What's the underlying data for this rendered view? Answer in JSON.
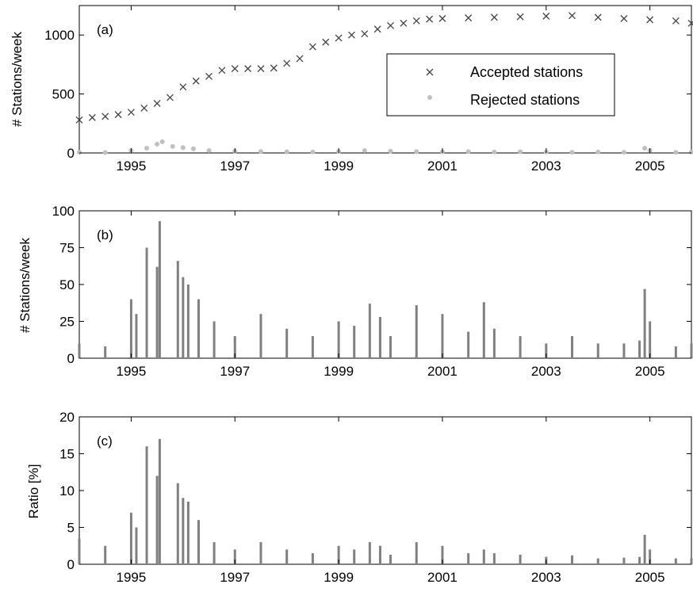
{
  "chart_data": [
    {
      "panel": "(a)",
      "type": "scatter",
      "ylabel": "# Stations/week",
      "xlim": [
        1994.0,
        2005.8
      ],
      "ylim": [
        0,
        1250
      ],
      "xticks": [
        1995,
        1997,
        1999,
        2001,
        2003,
        2005
      ],
      "yticks": [
        0,
        500,
        1000
      ],
      "legend": {
        "placement": "upper-right-inset"
      },
      "series": [
        {
          "name": "Accepted stations",
          "marker": "x",
          "color": "#444444",
          "x": [
            1994.0,
            1994.25,
            1994.5,
            1994.75,
            1995.0,
            1995.25,
            1995.5,
            1995.75,
            1996.0,
            1996.25,
            1996.5,
            1996.75,
            1997.0,
            1997.25,
            1997.5,
            1997.75,
            1998.0,
            1998.25,
            1998.5,
            1998.75,
            1999.0,
            1999.25,
            1999.5,
            1999.75,
            2000.0,
            2000.25,
            2000.5,
            2000.75,
            2001.0,
            2001.5,
            2002.0,
            2002.5,
            2003.0,
            2003.5,
            2004.0,
            2004.5,
            2005.0,
            2005.5,
            2005.8
          ],
          "y": [
            280,
            300,
            310,
            325,
            345,
            380,
            420,
            470,
            560,
            610,
            650,
            700,
            715,
            715,
            715,
            720,
            760,
            800,
            900,
            940,
            975,
            1000,
            1010,
            1050,
            1080,
            1100,
            1120,
            1135,
            1140,
            1145,
            1150,
            1155,
            1160,
            1165,
            1150,
            1140,
            1130,
            1120,
            1100
          ]
        },
        {
          "name": "Rejected stations",
          "marker": "dot",
          "color": "#c0c0c0",
          "x": [
            1994.0,
            1994.5,
            1995.0,
            1995.3,
            1995.5,
            1995.6,
            1995.8,
            1996.0,
            1996.2,
            1996.5,
            1997.0,
            1997.5,
            1998.0,
            1998.5,
            1999.0,
            1999.5,
            2000.0,
            2000.5,
            2001.0,
            2001.5,
            2002.0,
            2002.5,
            2003.0,
            2003.5,
            2004.0,
            2004.5,
            2004.9,
            2005.0,
            2005.5,
            2005.8
          ],
          "y": [
            5,
            3,
            20,
            40,
            75,
            95,
            55,
            45,
            35,
            20,
            15,
            12,
            10,
            8,
            12,
            20,
            15,
            12,
            10,
            12,
            8,
            10,
            8,
            6,
            8,
            6,
            40,
            20,
            5,
            8
          ]
        }
      ]
    },
    {
      "panel": "(b)",
      "type": "bar",
      "ylabel": "# Stations/week",
      "xlim": [
        1994.0,
        2005.8
      ],
      "ylim": [
        0,
        100
      ],
      "xticks": [
        1995,
        1997,
        1999,
        2001,
        2003,
        2005
      ],
      "yticks": [
        0,
        25,
        50,
        75,
        100
      ],
      "color": "#808080",
      "x": [
        1994.0,
        1994.5,
        1995.0,
        1995.1,
        1995.3,
        1995.5,
        1995.55,
        1995.9,
        1996.0,
        1996.1,
        1996.3,
        1996.6,
        1997.0,
        1997.5,
        1998.0,
        1998.5,
        1999.0,
        1999.3,
        1999.6,
        1999.8,
        2000.0,
        2000.5,
        2001.0,
        2001.5,
        2001.8,
        2002.0,
        2002.5,
        2003.0,
        2003.5,
        2004.0,
        2004.5,
        2004.8,
        2004.9,
        2005.0,
        2005.5,
        2005.8
      ],
      "values": [
        10,
        8,
        40,
        30,
        75,
        62,
        93,
        66,
        55,
        50,
        40,
        25,
        15,
        30,
        20,
        15,
        25,
        22,
        37,
        28,
        15,
        36,
        30,
        18,
        38,
        20,
        15,
        10,
        15,
        10,
        10,
        12,
        47,
        25,
        8,
        10
      ]
    },
    {
      "panel": "(c)",
      "type": "bar",
      "ylabel": "Ratio [%]",
      "xlim": [
        1994.0,
        2005.8
      ],
      "ylim": [
        0,
        20
      ],
      "xticks": [
        1995,
        1997,
        1999,
        2001,
        2003,
        2005
      ],
      "yticks": [
        0,
        5,
        10,
        15,
        20
      ],
      "color": "#808080",
      "x": [
        1994.0,
        1994.5,
        1995.0,
        1995.1,
        1995.3,
        1995.5,
        1995.55,
        1995.9,
        1996.0,
        1996.1,
        1996.3,
        1996.6,
        1997.0,
        1997.5,
        1998.0,
        1998.5,
        1999.0,
        1999.3,
        1999.6,
        1999.8,
        2000.0,
        2000.5,
        2001.0,
        2001.5,
        2001.8,
        2002.0,
        2002.5,
        2003.0,
        2003.5,
        2004.0,
        2004.5,
        2004.8,
        2004.9,
        2005.0,
        2005.5,
        2005.8
      ],
      "values": [
        3.5,
        2.5,
        7,
        5,
        16,
        12,
        17,
        11,
        9,
        8.5,
        6,
        3,
        2,
        3,
        2,
        1.5,
        2.5,
        2,
        3,
        2.5,
        1.3,
        3,
        2.5,
        1.5,
        2,
        1.5,
        1.3,
        1,
        1.2,
        0.8,
        0.9,
        1,
        4,
        2,
        0.8,
        0.8
      ]
    }
  ]
}
